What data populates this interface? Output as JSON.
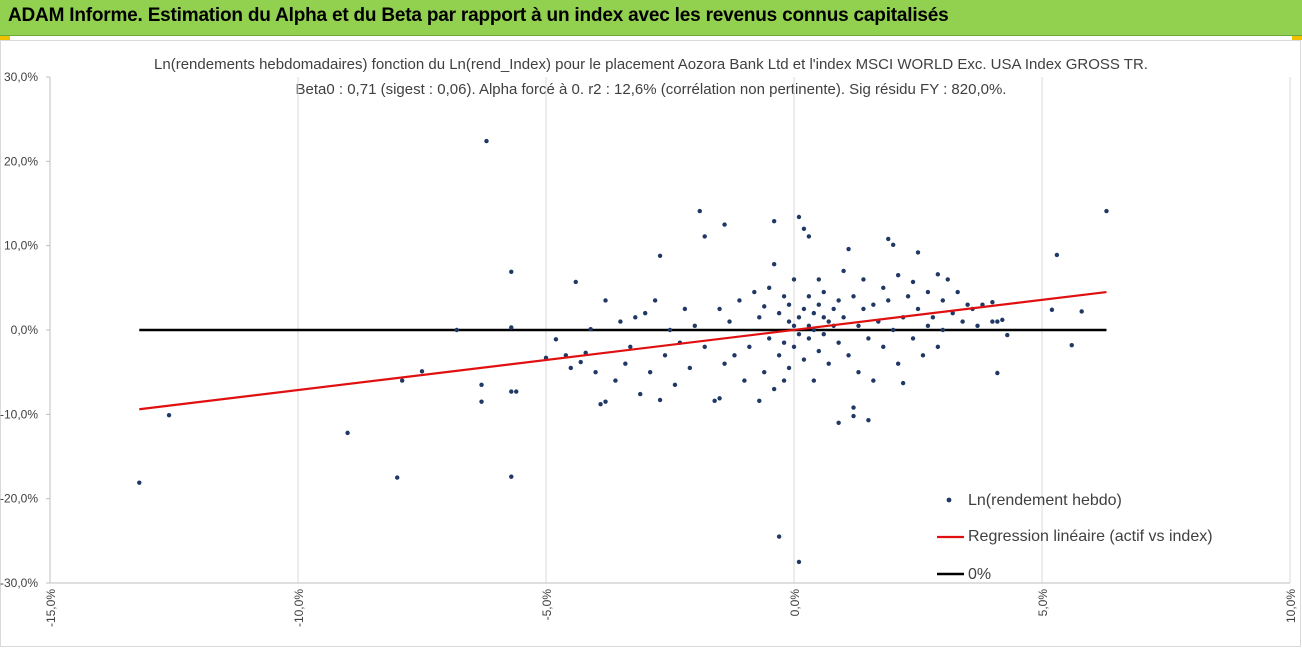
{
  "header": {
    "title": "ADAM Informe. Estimation du Alpha et du Beta par rapport à un index avec les revenus connus capitalisés"
  },
  "colors": {
    "header_bg": "#92d050",
    "points": "#1f3864",
    "regression": "#e01010",
    "zero_line": "#000000",
    "grid": "#d9d9d9"
  },
  "chart_data": {
    "type": "scatter",
    "title": "Ln(rendements hebdomadaires) fonction du Ln(rend_Index) pour le placement Aozora Bank Ltd et l'index MSCI WORLD Exc. USA Index GROSS TR.",
    "subtitle": "Beta0 : 0,71  (sigest : 0,06).  Alpha forcé à 0. r2 : 12,6% (corrélation non pertinente). Sig résidu FY : 820,0%.",
    "xlim": [
      -0.15,
      0.1
    ],
    "ylim": [
      -0.3,
      0.3
    ],
    "x_ticks": [
      "-15,0%",
      "-10,0%",
      "-5,0%",
      "0,0%",
      "5,0%",
      "10,0%"
    ],
    "y_ticks": [
      "30,0%",
      "20,0%",
      "10,0%",
      "0,0%",
      "-10,0%",
      "-20,0%",
      "-30,0%"
    ],
    "grid": "vertical",
    "legend_position": "bottom-right",
    "series": [
      {
        "name": "Ln(rendement hebdo)",
        "kind": "scatter",
        "points": [
          [
            -0.132,
            -0.181
          ],
          [
            -0.126,
            -0.101
          ],
          [
            -0.09,
            -0.122
          ],
          [
            -0.08,
            -0.175
          ],
          [
            -0.079,
            -0.06
          ],
          [
            -0.075,
            -0.049
          ],
          [
            -0.068,
            0.0
          ],
          [
            -0.063,
            -0.065
          ],
          [
            -0.063,
            -0.085
          ],
          [
            -0.062,
            0.224
          ],
          [
            -0.057,
            0.069
          ],
          [
            -0.057,
            0.003
          ],
          [
            -0.057,
            -0.174
          ],
          [
            -0.057,
            -0.073
          ],
          [
            -0.056,
            -0.073
          ],
          [
            -0.05,
            -0.033
          ],
          [
            -0.048,
            -0.011
          ],
          [
            -0.046,
            -0.03
          ],
          [
            -0.045,
            -0.045
          ],
          [
            -0.044,
            0.057
          ],
          [
            -0.043,
            -0.038
          ],
          [
            -0.042,
            -0.027
          ],
          [
            -0.041,
            0.001
          ],
          [
            -0.04,
            -0.05
          ],
          [
            -0.039,
            -0.088
          ],
          [
            -0.038,
            -0.085
          ],
          [
            -0.038,
            0.035
          ],
          [
            -0.036,
            -0.06
          ],
          [
            -0.035,
            0.01
          ],
          [
            -0.034,
            -0.04
          ],
          [
            -0.033,
            -0.02
          ],
          [
            -0.032,
            0.015
          ],
          [
            -0.031,
            -0.076
          ],
          [
            -0.03,
            0.02
          ],
          [
            -0.029,
            -0.05
          ],
          [
            -0.028,
            0.035
          ],
          [
            -0.027,
            -0.083
          ],
          [
            -0.027,
            0.088
          ],
          [
            -0.026,
            -0.03
          ],
          [
            -0.025,
            0.0
          ],
          [
            -0.024,
            -0.065
          ],
          [
            -0.023,
            -0.015
          ],
          [
            -0.022,
            0.025
          ],
          [
            -0.021,
            -0.045
          ],
          [
            -0.02,
            0.005
          ],
          [
            -0.019,
            0.141
          ],
          [
            -0.018,
            0.111
          ],
          [
            -0.018,
            -0.02
          ],
          [
            -0.016,
            -0.084
          ],
          [
            -0.015,
            -0.081
          ],
          [
            -0.015,
            0.025
          ],
          [
            -0.014,
            0.125
          ],
          [
            -0.014,
            -0.04
          ],
          [
            -0.013,
            0.01
          ],
          [
            -0.012,
            -0.03
          ],
          [
            -0.011,
            0.035
          ],
          [
            -0.01,
            -0.06
          ],
          [
            -0.009,
            -0.02
          ],
          [
            -0.008,
            0.045
          ],
          [
            -0.007,
            -0.084
          ],
          [
            -0.007,
            0.015
          ],
          [
            -0.006,
            -0.05
          ],
          [
            -0.006,
            0.028
          ],
          [
            -0.005,
            -0.01
          ],
          [
            -0.005,
            0.05
          ],
          [
            -0.004,
            0.129
          ],
          [
            -0.004,
            0.078
          ],
          [
            -0.004,
            -0.07
          ],
          [
            -0.003,
            -0.03
          ],
          [
            -0.003,
            0.02
          ],
          [
            -0.003,
            -0.245
          ],
          [
            -0.002,
            0.04
          ],
          [
            -0.002,
            -0.015
          ],
          [
            -0.002,
            -0.06
          ],
          [
            -0.001,
            0.01
          ],
          [
            -0.001,
            0.03
          ],
          [
            -0.001,
            -0.045
          ],
          [
            0.0,
            0.005
          ],
          [
            0.0,
            -0.02
          ],
          [
            0.0,
            0.06
          ],
          [
            0.001,
            -0.275
          ],
          [
            0.001,
            0.134
          ],
          [
            0.001,
            0.015
          ],
          [
            0.001,
            -0.005
          ],
          [
            0.002,
            0.025
          ],
          [
            0.002,
            -0.035
          ],
          [
            0.002,
            0.12
          ],
          [
            0.003,
            0.111
          ],
          [
            0.003,
            0.005
          ],
          [
            0.003,
            -0.01
          ],
          [
            0.003,
            0.04
          ],
          [
            0.004,
            -0.06
          ],
          [
            0.004,
            0.02
          ],
          [
            0.004,
            0.0
          ],
          [
            0.005,
            0.03
          ],
          [
            0.005,
            -0.025
          ],
          [
            0.005,
            0.06
          ],
          [
            0.006,
            0.015
          ],
          [
            0.006,
            -0.005
          ],
          [
            0.006,
            0.045
          ],
          [
            0.007,
            0.01
          ],
          [
            0.007,
            -0.04
          ],
          [
            0.008,
            0.025
          ],
          [
            0.008,
            0.005
          ],
          [
            0.009,
            -0.11
          ],
          [
            0.009,
            0.035
          ],
          [
            0.009,
            -0.015
          ],
          [
            0.01,
            0.07
          ],
          [
            0.01,
            0.015
          ],
          [
            0.011,
            -0.03
          ],
          [
            0.011,
            0.096
          ],
          [
            0.012,
            -0.092
          ],
          [
            0.012,
            -0.102
          ],
          [
            0.012,
            0.04
          ],
          [
            0.013,
            0.005
          ],
          [
            0.013,
            -0.05
          ],
          [
            0.014,
            0.025
          ],
          [
            0.014,
            0.06
          ],
          [
            0.015,
            -0.107
          ],
          [
            0.015,
            -0.01
          ],
          [
            0.016,
            0.03
          ],
          [
            0.016,
            -0.06
          ],
          [
            0.017,
            0.01
          ],
          [
            0.018,
            0.05
          ],
          [
            0.018,
            -0.02
          ],
          [
            0.019,
            0.035
          ],
          [
            0.019,
            0.108
          ],
          [
            0.02,
            0.0
          ],
          [
            0.02,
            0.101
          ],
          [
            0.021,
            -0.04
          ],
          [
            0.021,
            0.065
          ],
          [
            0.022,
            0.015
          ],
          [
            0.022,
            -0.063
          ],
          [
            0.023,
            0.04
          ],
          [
            0.024,
            -0.01
          ],
          [
            0.024,
            0.057
          ],
          [
            0.025,
            0.092
          ],
          [
            0.025,
            0.025
          ],
          [
            0.026,
            -0.03
          ],
          [
            0.027,
            0.045
          ],
          [
            0.027,
            0.005
          ],
          [
            0.028,
            0.015
          ],
          [
            0.029,
            0.066
          ],
          [
            0.029,
            -0.02
          ],
          [
            0.03,
            0.035
          ],
          [
            0.03,
            0.0
          ],
          [
            0.031,
            0.06
          ],
          [
            0.032,
            0.02
          ],
          [
            0.033,
            0.045
          ],
          [
            0.034,
            0.01
          ],
          [
            0.035,
            0.03
          ],
          [
            0.036,
            0.025
          ],
          [
            0.037,
            0.005
          ],
          [
            0.038,
            0.03
          ],
          [
            0.04,
            0.033
          ],
          [
            0.04,
            0.01
          ],
          [
            0.041,
            0.01
          ],
          [
            0.041,
            -0.051
          ],
          [
            0.042,
            0.012
          ],
          [
            0.043,
            -0.006
          ],
          [
            0.052,
            0.024
          ],
          [
            0.053,
            0.089
          ],
          [
            0.056,
            -0.018
          ],
          [
            0.058,
            0.022
          ],
          [
            0.063,
            0.141
          ]
        ]
      },
      {
        "name": "Regression linéaire (actif vs index)",
        "kind": "line",
        "points": [
          [
            -0.132,
            -0.094
          ],
          [
            0.063,
            0.045
          ]
        ]
      },
      {
        "name": "0%",
        "kind": "line",
        "points": [
          [
            -0.132,
            0.0
          ],
          [
            0.063,
            0.0
          ]
        ]
      }
    ]
  }
}
